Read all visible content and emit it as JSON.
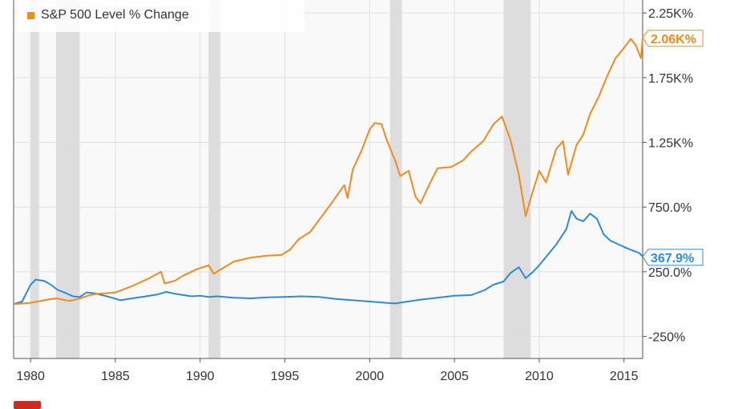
{
  "chart_data": {
    "type": "line",
    "title": "",
    "xlabel": "",
    "ylabel": "",
    "x_ticks": [
      "1980",
      "1985",
      "1990",
      "1995",
      "2000",
      "2005",
      "2010",
      "2015"
    ],
    "y_ticks": [
      "-250%",
      "250.0%",
      "750.0%",
      "1.25K%",
      "1.75K%",
      "2.25K%"
    ],
    "y_tick_values": [
      -250,
      250,
      750,
      1250,
      1750,
      2250
    ],
    "xlim": [
      1979.0,
      2016.1
    ],
    "ylim": [
      -420,
      2350
    ],
    "recession_bands": [
      [
        1980.0,
        1980.5
      ],
      [
        1981.5,
        1982.9
      ],
      [
        1990.5,
        1991.2
      ],
      [
        2001.2,
        2001.9
      ],
      [
        2007.9,
        2009.5
      ]
    ],
    "grid": true,
    "legend_position": "top-left",
    "series": [
      {
        "name": "",
        "color": "#2e8bdc",
        "end_label": "367.9%",
        "points": [
          [
            1979.0,
            0
          ],
          [
            1979.5,
            20
          ],
          [
            1980.0,
            150
          ],
          [
            1980.3,
            190
          ],
          [
            1980.8,
            180
          ],
          [
            1981.2,
            150
          ],
          [
            1981.6,
            110
          ],
          [
            1982.0,
            90
          ],
          [
            1982.5,
            60
          ],
          [
            1982.9,
            55
          ],
          [
            1983.3,
            90
          ],
          [
            1983.7,
            85
          ],
          [
            1984.2,
            70
          ],
          [
            1984.8,
            50
          ],
          [
            1985.3,
            30
          ],
          [
            1986.0,
            45
          ],
          [
            1986.8,
            60
          ],
          [
            1987.5,
            75
          ],
          [
            1988.0,
            95
          ],
          [
            1988.5,
            80
          ],
          [
            1989.0,
            70
          ],
          [
            1989.5,
            60
          ],
          [
            1990.0,
            65
          ],
          [
            1990.5,
            55
          ],
          [
            1991.0,
            60
          ],
          [
            1992.0,
            50
          ],
          [
            1993.0,
            45
          ],
          [
            1994.0,
            52
          ],
          [
            1995.0,
            55
          ],
          [
            1996.0,
            60
          ],
          [
            1997.0,
            55
          ],
          [
            1998.0,
            40
          ],
          [
            1999.0,
            30
          ],
          [
            2000.0,
            20
          ],
          [
            2001.0,
            10
          ],
          [
            2001.5,
            5
          ],
          [
            2002.0,
            15
          ],
          [
            2003.0,
            35
          ],
          [
            2004.0,
            50
          ],
          [
            2005.0,
            65
          ],
          [
            2006.0,
            70
          ],
          [
            2006.8,
            110
          ],
          [
            2007.3,
            150
          ],
          [
            2007.9,
            175
          ],
          [
            2008.3,
            240
          ],
          [
            2008.8,
            285
          ],
          [
            2009.2,
            200
          ],
          [
            2009.6,
            245
          ],
          [
            2010.0,
            300
          ],
          [
            2010.5,
            380
          ],
          [
            2011.0,
            460
          ],
          [
            2011.6,
            580
          ],
          [
            2011.9,
            720
          ],
          [
            2012.2,
            660
          ],
          [
            2012.6,
            640
          ],
          [
            2013.0,
            700
          ],
          [
            2013.4,
            660
          ],
          [
            2013.8,
            540
          ],
          [
            2014.2,
            490
          ],
          [
            2014.7,
            460
          ],
          [
            2015.2,
            430
          ],
          [
            2015.6,
            410
          ],
          [
            2015.9,
            395
          ],
          [
            2016.1,
            368
          ]
        ]
      },
      {
        "name": "S&P 500 Level % Change",
        "color": "#f28b1c",
        "end_label": "2.06K%",
        "points": [
          [
            1979.0,
            0
          ],
          [
            1980.0,
            10
          ],
          [
            1981.0,
            35
          ],
          [
            1981.5,
            45
          ],
          [
            1982.3,
            25
          ],
          [
            1982.8,
            40
          ],
          [
            1983.5,
            70
          ],
          [
            1984.0,
            80
          ],
          [
            1985.0,
            90
          ],
          [
            1986.0,
            140
          ],
          [
            1987.0,
            200
          ],
          [
            1987.7,
            250
          ],
          [
            1987.9,
            160
          ],
          [
            1988.5,
            180
          ],
          [
            1989.0,
            220
          ],
          [
            1989.8,
            270
          ],
          [
            1990.5,
            300
          ],
          [
            1990.8,
            235
          ],
          [
            1991.5,
            290
          ],
          [
            1992.0,
            330
          ],
          [
            1993.0,
            360
          ],
          [
            1994.0,
            375
          ],
          [
            1994.8,
            380
          ],
          [
            1995.3,
            420
          ],
          [
            1995.8,
            500
          ],
          [
            1996.5,
            560
          ],
          [
            1997.3,
            700
          ],
          [
            1997.8,
            790
          ],
          [
            1998.5,
            920
          ],
          [
            1998.7,
            820
          ],
          [
            1999.0,
            1040
          ],
          [
            1999.5,
            1180
          ],
          [
            2000.0,
            1350
          ],
          [
            2000.3,
            1400
          ],
          [
            2000.7,
            1390
          ],
          [
            2001.0,
            1270
          ],
          [
            2001.5,
            1110
          ],
          [
            2001.8,
            990
          ],
          [
            2002.3,
            1030
          ],
          [
            2002.7,
            830
          ],
          [
            2003.0,
            780
          ],
          [
            2003.5,
            920
          ],
          [
            2004.0,
            1050
          ],
          [
            2004.8,
            1060
          ],
          [
            2005.5,
            1110
          ],
          [
            2006.0,
            1180
          ],
          [
            2006.7,
            1260
          ],
          [
            2007.3,
            1390
          ],
          [
            2007.8,
            1450
          ],
          [
            2008.3,
            1270
          ],
          [
            2008.8,
            1000
          ],
          [
            2009.2,
            680
          ],
          [
            2009.5,
            820
          ],
          [
            2010.0,
            1030
          ],
          [
            2010.4,
            940
          ],
          [
            2011.0,
            1200
          ],
          [
            2011.4,
            1260
          ],
          [
            2011.7,
            1000
          ],
          [
            2012.2,
            1230
          ],
          [
            2012.6,
            1310
          ],
          [
            2013.0,
            1470
          ],
          [
            2013.5,
            1600
          ],
          [
            2014.0,
            1760
          ],
          [
            2014.5,
            1900
          ],
          [
            2015.0,
            1980
          ],
          [
            2015.4,
            2050
          ],
          [
            2015.7,
            2000
          ],
          [
            2016.0,
            1900
          ],
          [
            2016.1,
            2060
          ]
        ]
      }
    ]
  }
}
